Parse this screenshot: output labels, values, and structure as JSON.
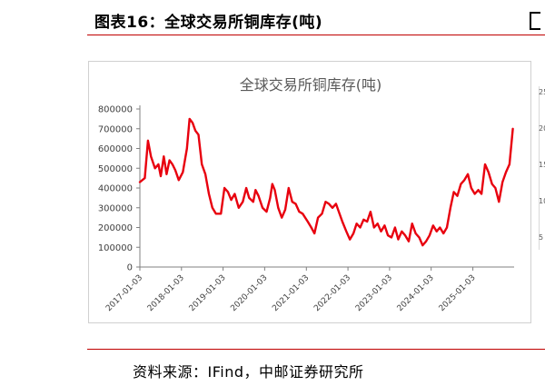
{
  "header": {
    "figure_title": "图表16：全球交易所铜库存(吨)"
  },
  "footer": {
    "source": "资料来源：IFind，中邮证券研究所"
  },
  "side_chart": {
    "tick_labels": [
      "25",
      "20",
      "15",
      "10",
      "5"
    ]
  },
  "colors": {
    "accent": "#c00000",
    "series": "#e8000e"
  },
  "chart_data": {
    "type": "line",
    "title": "全球交易所铜库存(吨)",
    "xlabel": "",
    "ylabel": "",
    "ylim": [
      0,
      800000
    ],
    "yticks": [
      0,
      100000,
      200000,
      300000,
      400000,
      500000,
      600000,
      700000,
      800000
    ],
    "xticks": [
      "2017-01-03",
      "2018-01-03",
      "2019-01-03",
      "2020-01-03",
      "2021-01-03",
      "2022-01-03",
      "2023-01-03",
      "2024-01-03",
      "2025-01-03"
    ],
    "xlim": [
      "2017-01-03",
      "2025-12-31"
    ],
    "grid": false,
    "series": [
      {
        "color": "#e8000e",
        "points": [
          [
            "2017-01-03",
            430000
          ],
          [
            "2017-02-15",
            450000
          ],
          [
            "2017-03-15",
            640000
          ],
          [
            "2017-04-10",
            560000
          ],
          [
            "2017-05-15",
            500000
          ],
          [
            "2017-06-15",
            520000
          ],
          [
            "2017-07-05",
            460000
          ],
          [
            "2017-08-01",
            560000
          ],
          [
            "2017-08-25",
            470000
          ],
          [
            "2017-09-20",
            540000
          ],
          [
            "2017-10-15",
            520000
          ],
          [
            "2017-11-10",
            490000
          ],
          [
            "2017-12-10",
            440000
          ],
          [
            "2018-01-15",
            480000
          ],
          [
            "2018-02-20",
            600000
          ],
          [
            "2018-03-15",
            750000
          ],
          [
            "2018-04-10",
            730000
          ],
          [
            "2018-05-05",
            690000
          ],
          [
            "2018-06-01",
            670000
          ],
          [
            "2018-07-01",
            520000
          ],
          [
            "2018-08-01",
            470000
          ],
          [
            "2018-09-01",
            370000
          ],
          [
            "2018-10-01",
            300000
          ],
          [
            "2018-11-01",
            270000
          ],
          [
            "2018-12-15",
            270000
          ],
          [
            "2019-01-15",
            400000
          ],
          [
            "2019-02-15",
            380000
          ],
          [
            "2019-03-15",
            340000
          ],
          [
            "2019-04-15",
            370000
          ],
          [
            "2019-05-20",
            300000
          ],
          [
            "2019-06-25",
            330000
          ],
          [
            "2019-07-25",
            400000
          ],
          [
            "2019-08-20",
            350000
          ],
          [
            "2019-09-25",
            330000
          ],
          [
            "2019-10-15",
            390000
          ],
          [
            "2019-11-10",
            360000
          ],
          [
            "2019-12-15",
            300000
          ],
          [
            "2020-01-20",
            280000
          ],
          [
            "2020-02-20",
            350000
          ],
          [
            "2020-03-10",
            420000
          ],
          [
            "2020-04-01",
            390000
          ],
          [
            "2020-05-01",
            300000
          ],
          [
            "2020-06-01",
            250000
          ],
          [
            "2020-07-01",
            290000
          ],
          [
            "2020-08-01",
            400000
          ],
          [
            "2020-09-01",
            330000
          ],
          [
            "2020-10-01",
            320000
          ],
          [
            "2020-11-01",
            280000
          ],
          [
            "2020-12-01",
            270000
          ],
          [
            "2021-01-15",
            230000
          ],
          [
            "2021-02-15",
            200000
          ],
          [
            "2021-03-15",
            170000
          ],
          [
            "2021-04-15",
            250000
          ],
          [
            "2021-05-20",
            270000
          ],
          [
            "2021-06-20",
            330000
          ],
          [
            "2021-07-20",
            320000
          ],
          [
            "2021-08-20",
            300000
          ],
          [
            "2021-09-20",
            320000
          ],
          [
            "2021-10-15",
            280000
          ],
          [
            "2021-11-15",
            230000
          ],
          [
            "2021-12-20",
            180000
          ],
          [
            "2022-01-20",
            140000
          ],
          [
            "2022-02-20",
            170000
          ],
          [
            "2022-03-20",
            220000
          ],
          [
            "2022-04-20",
            200000
          ],
          [
            "2022-05-20",
            240000
          ],
          [
            "2022-06-20",
            230000
          ],
          [
            "2022-07-20",
            280000
          ],
          [
            "2022-08-20",
            200000
          ],
          [
            "2022-09-20",
            220000
          ],
          [
            "2022-10-20",
            180000
          ],
          [
            "2022-11-20",
            210000
          ],
          [
            "2022-12-20",
            160000
          ],
          [
            "2023-01-20",
            150000
          ],
          [
            "2023-02-20",
            200000
          ],
          [
            "2023-03-20",
            140000
          ],
          [
            "2023-04-20",
            180000
          ],
          [
            "2023-05-20",
            160000
          ],
          [
            "2023-06-20",
            130000
          ],
          [
            "2023-07-20",
            220000
          ],
          [
            "2023-08-20",
            170000
          ],
          [
            "2023-09-20",
            150000
          ],
          [
            "2023-10-20",
            110000
          ],
          [
            "2023-11-20",
            130000
          ],
          [
            "2023-12-20",
            160000
          ],
          [
            "2024-01-20",
            210000
          ],
          [
            "2024-02-20",
            180000
          ],
          [
            "2024-03-20",
            200000
          ],
          [
            "2024-04-20",
            170000
          ],
          [
            "2024-05-20",
            200000
          ],
          [
            "2024-06-20",
            300000
          ],
          [
            "2024-07-20",
            380000
          ],
          [
            "2024-08-20",
            360000
          ],
          [
            "2024-09-20",
            420000
          ],
          [
            "2024-10-20",
            440000
          ],
          [
            "2024-11-20",
            470000
          ],
          [
            "2024-12-20",
            400000
          ],
          [
            "2025-01-20",
            370000
          ],
          [
            "2025-02-20",
            390000
          ],
          [
            "2025-03-20",
            370000
          ],
          [
            "2025-04-20",
            520000
          ],
          [
            "2025-05-20",
            480000
          ],
          [
            "2025-06-20",
            420000
          ],
          [
            "2025-07-20",
            400000
          ],
          [
            "2025-08-20",
            330000
          ],
          [
            "2025-09-20",
            430000
          ],
          [
            "2025-10-20",
            480000
          ],
          [
            "2025-11-20",
            520000
          ],
          [
            "2025-12-20",
            700000
          ]
        ]
      }
    ]
  }
}
